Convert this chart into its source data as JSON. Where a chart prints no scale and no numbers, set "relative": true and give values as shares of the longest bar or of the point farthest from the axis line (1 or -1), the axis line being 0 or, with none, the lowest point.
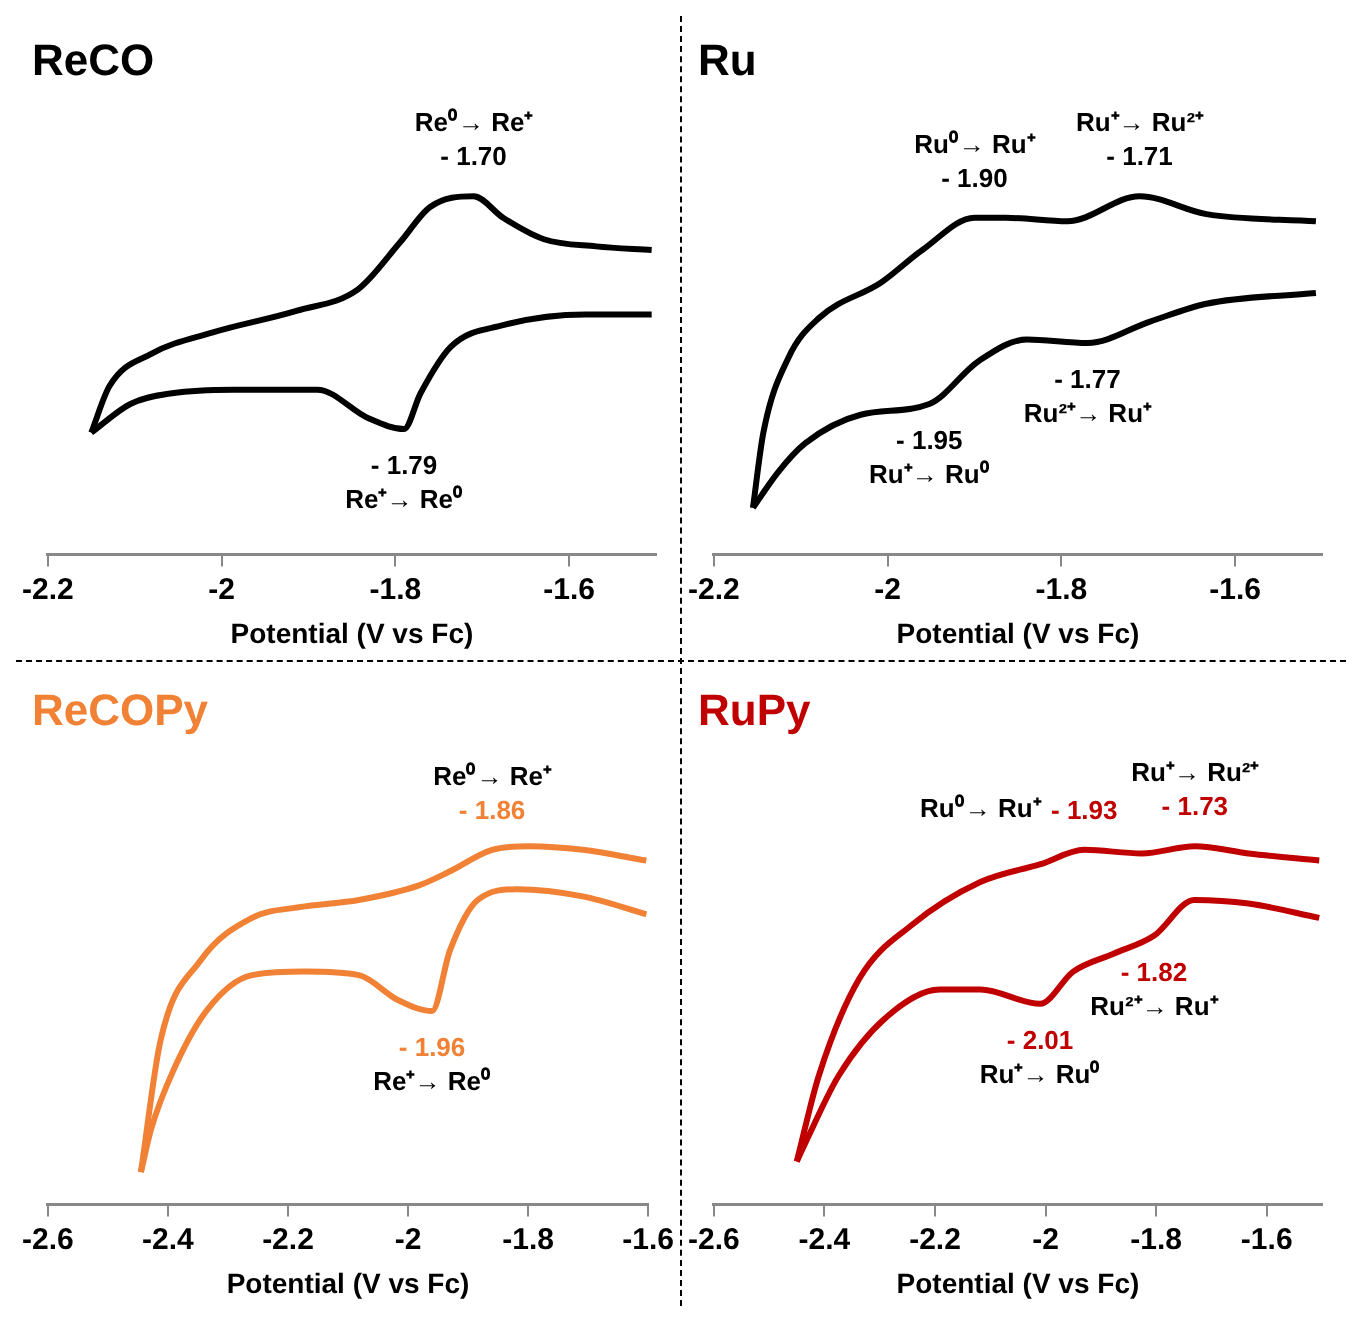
{
  "chart_data": [
    {
      "type": "line",
      "title": "ReCO",
      "xlabel": "Potential (V vs Fc)",
      "relative": true,
      "xlim": [
        -2.2,
        -1.5
      ],
      "xticks": [
        -2.2,
        -2,
        -1.8,
        -1.6
      ],
      "series": [
        {
          "color": "#000000",
          "x": [
            -2.15,
            -2.129,
            -2.081,
            -2.01,
            -1.914,
            -1.843,
            -1.795,
            -1.76,
            -1.71,
            -1.676,
            -1.629,
            -1.569,
            -1.505
          ],
          "values": [
            0.34,
            0.47,
            0.56,
            0.62,
            0.68,
            0.74,
            0.87,
            0.97,
            1,
            0.94,
            0.88,
            0.86,
            0.85
          ]
        },
        {
          "color": "#000000",
          "x": [
            -2.15,
            -2.105,
            -2.057,
            -1.986,
            -1.89,
            -1.831,
            -1.79,
            -1.771,
            -1.736,
            -1.676,
            -1.581,
            -1.505
          ],
          "values": [
            0.34,
            0.42,
            0.45,
            0.46,
            0.46,
            0.38,
            0.35,
            0.45,
            0.58,
            0.64,
            0.67,
            0.67
          ]
        }
      ],
      "annotations": [
        {
          "text": "- 1.70",
          "x": -1.71,
          "y": 1
        },
        {
          "text": "Re⁰→ Re⁺",
          "x": -1.71,
          "y": 1
        },
        {
          "text": "- 1.79",
          "x": -1.79,
          "y": 0.35
        },
        {
          "text": "Re⁺→ Re⁰",
          "x": -1.79,
          "y": 0.35
        }
      ]
    },
    {
      "type": "line",
      "title": "Ru",
      "xlabel": "Potential (V vs Fc)",
      "relative": true,
      "xlim": [
        -2.2,
        -1.5
      ],
      "xticks": [
        -2.2,
        -2,
        -1.8,
        -1.6
      ],
      "series": [
        {
          "color": "#000000",
          "x": [
            -2.155,
            -2.143,
            -2.114,
            -2.079,
            -2.007,
            -1.96,
            -1.9,
            -1.864,
            -1.793,
            -1.71,
            -1.633,
            -1.507
          ],
          "values": [
            0.13,
            0.34,
            0.55,
            0.66,
            0.76,
            0.85,
            0.94,
            0.94,
            0.93,
            1,
            0.95,
            0.93
          ]
        },
        {
          "color": "#000000",
          "x": [
            -2.155,
            -2.126,
            -2.095,
            -2.031,
            -1.952,
            -1.895,
            -1.84,
            -1.77,
            -1.698,
            -1.633,
            -1.507
          ],
          "values": [
            0.13,
            0.23,
            0.31,
            0.39,
            0.42,
            0.54,
            0.6,
            0.59,
            0.65,
            0.7,
            0.73
          ]
        }
      ],
      "annotations": [
        {
          "text": "- 1.90",
          "x": -1.9,
          "y": 0.94
        },
        {
          "text": "Ru⁰→ Ru⁺",
          "x": -1.9,
          "y": 0.94
        },
        {
          "text": "- 1.71",
          "x": -1.71,
          "y": 1
        },
        {
          "text": "Ru⁺→ Ru²⁺",
          "x": -1.71,
          "y": 1
        },
        {
          "text": "- 1.77",
          "x": -1.77,
          "y": 0.59
        },
        {
          "text": "Ru²⁺→ Ru⁺",
          "x": -1.77,
          "y": 0.59
        },
        {
          "text": "- 1.95",
          "x": -1.952,
          "y": 0.42
        },
        {
          "text": "Ru⁺→ Ru⁰",
          "x": -1.952,
          "y": 0.42
        }
      ]
    },
    {
      "type": "line",
      "title": "ReCOPy",
      "xlabel": "Potential (V vs Fc)",
      "relative": true,
      "xlim": [
        -2.6,
        -1.6
      ],
      "xticks": [
        -2.6,
        -2.4,
        -2.2,
        -2,
        -1.8,
        -1.6
      ],
      "series": [
        {
          "color": "#f08135",
          "x": [
            -2.445,
            -2.412,
            -2.346,
            -2.26,
            -2.181,
            -2.082,
            -1.983,
            -1.93,
            -1.86,
            -1.798,
            -1.709,
            -1.603
          ],
          "values": [
            0.09,
            0.46,
            0.68,
            0.8,
            0.83,
            0.85,
            0.89,
            0.93,
            0.99,
            1,
            0.99,
            0.96
          ]
        },
        {
          "color": "#f08135",
          "x": [
            -2.445,
            -2.428,
            -2.392,
            -2.336,
            -2.26,
            -2.171,
            -2.082,
            -2.016,
            -1.96,
            -1.93,
            -1.884,
            -1.818,
            -1.709,
            -1.603
          ],
          "values": [
            0.09,
            0.21,
            0.37,
            0.54,
            0.64,
            0.65,
            0.64,
            0.57,
            0.54,
            0.71,
            0.85,
            0.88,
            0.86,
            0.81
          ]
        }
      ],
      "annotations": [
        {
          "text": "- 1.86",
          "x": -1.86,
          "y": 0.99
        },
        {
          "text": "Re⁰→ Re⁺",
          "x": -1.86,
          "y": 0.99
        },
        {
          "text": "- 1.96",
          "x": -1.96,
          "y": 0.54
        },
        {
          "text": "Re⁺→ Re⁰",
          "x": -1.96,
          "y": 0.54
        }
      ]
    },
    {
      "type": "line",
      "title": "RuPy",
      "xlabel": "Potential (V vs Fc)",
      "relative": true,
      "xlim": [
        -2.6,
        -1.5
      ],
      "xticks": [
        -2.6,
        -2.4,
        -2.2,
        -2,
        -1.8,
        -1.6
      ],
      "series": [
        {
          "color": "#c00000",
          "x": [
            -2.45,
            -2.41,
            -2.337,
            -2.242,
            -2.118,
            -2.009,
            -1.93,
            -1.826,
            -1.73,
            -1.633,
            -1.505
          ],
          "values": [
            0.12,
            0.36,
            0.63,
            0.78,
            0.9,
            0.95,
            0.99,
            0.98,
            1,
            0.98,
            0.96
          ]
        },
        {
          "color": "#c00000",
          "x": [
            -2.45,
            -2.429,
            -2.374,
            -2.29,
            -2.191,
            -2.118,
            -2.01,
            -1.95,
            -1.877,
            -1.804,
            -1.731,
            -1.633,
            -1.505
          ],
          "values": [
            0.12,
            0.19,
            0.36,
            0.52,
            0.6,
            0.6,
            0.56,
            0.65,
            0.7,
            0.75,
            0.85,
            0.84,
            0.8
          ]
        }
      ],
      "annotations": [
        {
          "text": "- 1.93",
          "x": -1.93,
          "y": 0.99
        },
        {
          "text": "Ru⁰→ Ru⁺",
          "x": -2.118,
          "y": 0.9
        },
        {
          "text": "- 1.73",
          "x": -1.73,
          "y": 1
        },
        {
          "text": "Ru⁺→ Ru²⁺",
          "x": -1.73,
          "y": 1
        },
        {
          "text": "- 1.82",
          "x": -1.804,
          "y": 0.75
        },
        {
          "text": "Ru²⁺→ Ru⁺",
          "x": -1.804,
          "y": 0.75
        },
        {
          "text": "- 2.01",
          "x": -2.01,
          "y": 0.56
        },
        {
          "text": "Ru⁺→ Ru⁰",
          "x": -2.01,
          "y": 0.56
        }
      ]
    }
  ]
}
